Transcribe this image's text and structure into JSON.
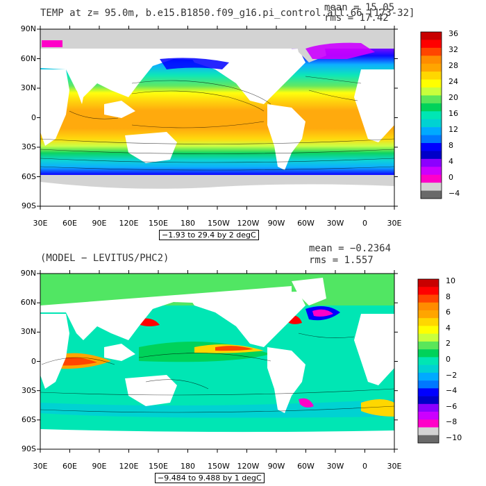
{
  "panels": [
    {
      "title": "TEMP at z=  95.0m, b.e15.B1850.f09_g16.pi_control.all.66 [173-32]",
      "mean_text": "mean = 15.05",
      "rms_text": "rms = 17.42",
      "range_text": "−1.93 to 29.4 by 2 degC",
      "lat_labels": [
        "90N",
        "60N",
        "30N",
        "0",
        "30S",
        "60S",
        "90S"
      ],
      "lon_labels": [
        "30E",
        "60E",
        "90E",
        "120E",
        "150E",
        "180",
        "150W",
        "120W",
        "90W",
        "60W",
        "30W",
        "0",
        "30E"
      ],
      "colorbar_labels": [
        "36",
        "32",
        "28",
        "24",
        "20",
        "16",
        "12",
        "8",
        "4",
        "0",
        "−4"
      ],
      "colorbar_colors": [
        "#c80000",
        "#ff0000",
        "#ff4500",
        "#ff8c00",
        "#ffa500",
        "#ffd700",
        "#ffff00",
        "#c8ff3c",
        "#5ae65a",
        "#00d25a",
        "#00e6b4",
        "#00d2d2",
        "#00aaff",
        "#0078ff",
        "#0000ff",
        "#0000c8",
        "#8c00ff",
        "#cc00ff",
        "#ff00c8",
        "#d3d3d3",
        "#696969"
      ]
    },
    {
      "title": "(MODEL − LEVITUS/PHC2)",
      "mean_text": "mean = −0.2364",
      "rms_text": "rms = 1.557",
      "range_text": "−9.484 to 9.488 by 1 degC",
      "lat_labels": [
        "90N",
        "60N",
        "30N",
        "0",
        "30S",
        "60S",
        "90S"
      ],
      "lon_labels": [
        "30E",
        "60E",
        "90E",
        "120E",
        "150E",
        "180",
        "150W",
        "120W",
        "90W",
        "60W",
        "30W",
        "0",
        "30E"
      ],
      "colorbar_labels": [
        "10",
        "8",
        "6",
        "4",
        "2",
        "0",
        "−2",
        "−4",
        "−6",
        "−8",
        "−10"
      ],
      "colorbar_colors": [
        "#c80000",
        "#ff0000",
        "#ff4500",
        "#ff8c00",
        "#ffa500",
        "#ffd700",
        "#ffff00",
        "#c8ff3c",
        "#5ae65a",
        "#00d25a",
        "#00e6b4",
        "#00d2d2",
        "#00aaff",
        "#0078ff",
        "#0000ff",
        "#0000c8",
        "#8c00ff",
        "#cc00ff",
        "#ff00c8",
        "#d3d3d3",
        "#696969"
      ]
    }
  ]
}
